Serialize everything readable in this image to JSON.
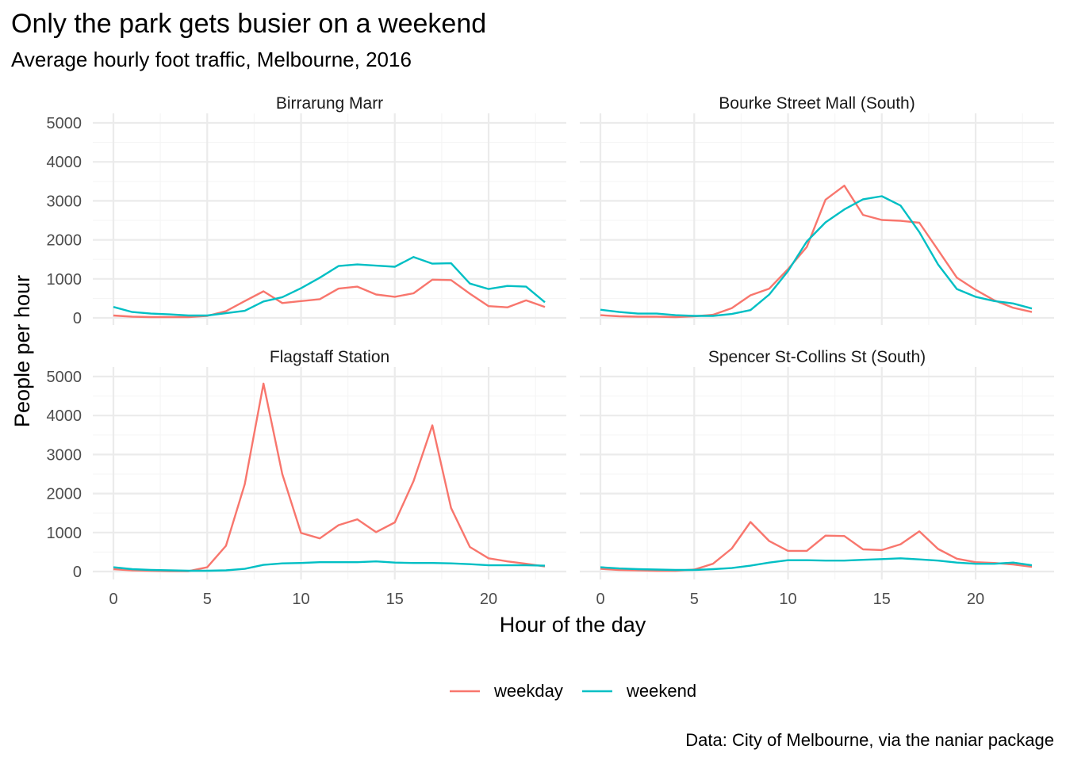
{
  "chart_data": {
    "type": "line",
    "title": "Only the park gets busier on a weekend",
    "subtitle": "Average hourly foot traffic, Melbourne, 2016",
    "xlabel": "Hour of the day",
    "ylabel": "People per hour",
    "caption": "Data: City of Melbourne, via the naniar package",
    "xlim": [
      0,
      23
    ],
    "ylim": [
      0,
      5000
    ],
    "xticks": [
      0,
      5,
      10,
      15,
      20
    ],
    "yticks": [
      0,
      1000,
      2000,
      3000,
      4000,
      5000
    ],
    "grid": true,
    "legend_position": "bottom",
    "legend": [
      {
        "name": "weekday",
        "color": "#F8766D"
      },
      {
        "name": "weekend",
        "color": "#00BFC4"
      }
    ],
    "x": [
      0,
      1,
      2,
      3,
      4,
      5,
      6,
      7,
      8,
      9,
      10,
      11,
      12,
      13,
      14,
      15,
      16,
      17,
      18,
      19,
      20,
      21,
      22,
      23
    ],
    "panels": [
      {
        "name": "Birrarung Marr",
        "series": [
          {
            "name": "weekday",
            "values": [
              60,
              30,
              20,
              20,
              20,
              50,
              170,
              430,
              680,
              380,
              430,
              480,
              750,
              800,
              600,
              540,
              630,
              980,
              970,
              620,
              300,
              270,
              450,
              280
            ]
          },
          {
            "name": "weekend",
            "values": [
              280,
              150,
              110,
              90,
              60,
              60,
              120,
              180,
              420,
              530,
              760,
              1030,
              1330,
              1370,
              1340,
              1310,
              1560,
              1390,
              1400,
              880,
              740,
              820,
              800,
              400
            ]
          }
        ]
      },
      {
        "name": "Bourke Street Mall (South)",
        "series": [
          {
            "name": "weekday",
            "values": [
              70,
              40,
              30,
              30,
              20,
              40,
              80,
              250,
              580,
              750,
              1250,
              1820,
              3030,
              3390,
              2640,
              2510,
              2490,
              2440,
              1740,
              1030,
              720,
              450,
              260,
              150
            ]
          },
          {
            "name": "weekend",
            "values": [
              210,
              150,
              110,
              110,
              70,
              50,
              50,
              100,
              200,
              600,
              1200,
              1960,
              2450,
              2780,
              3040,
              3120,
              2880,
              2200,
              1370,
              740,
              540,
              430,
              370,
              240
            ]
          }
        ]
      },
      {
        "name": "Flagstaff Station",
        "series": [
          {
            "name": "weekday",
            "values": [
              60,
              30,
              20,
              10,
              10,
              110,
              660,
              2240,
              4820,
              2500,
              990,
              850,
              1190,
              1340,
              1010,
              1260,
              2320,
              3750,
              1630,
              630,
              340,
              260,
              200,
              130
            ]
          },
          {
            "name": "weekend",
            "values": [
              110,
              60,
              40,
              30,
              20,
              20,
              30,
              70,
              170,
              210,
              220,
              240,
              240,
              240,
              260,
              230,
              220,
              220,
              210,
              190,
              160,
              160,
              160,
              150
            ]
          }
        ]
      },
      {
        "name": "Spencer St-Collins St (South)",
        "series": [
          {
            "name": "weekday",
            "values": [
              70,
              40,
              30,
              20,
              20,
              50,
              200,
              590,
              1270,
              780,
              530,
              530,
              920,
              910,
              570,
              550,
              700,
              1030,
              580,
              330,
              240,
              220,
              180,
              120
            ]
          },
          {
            "name": "weekend",
            "values": [
              110,
              80,
              60,
              50,
              40,
              40,
              60,
              90,
              150,
              230,
              290,
              290,
              280,
              280,
              300,
              320,
              340,
              310,
              280,
              230,
              200,
              200,
              230,
              160
            ]
          }
        ]
      }
    ]
  }
}
